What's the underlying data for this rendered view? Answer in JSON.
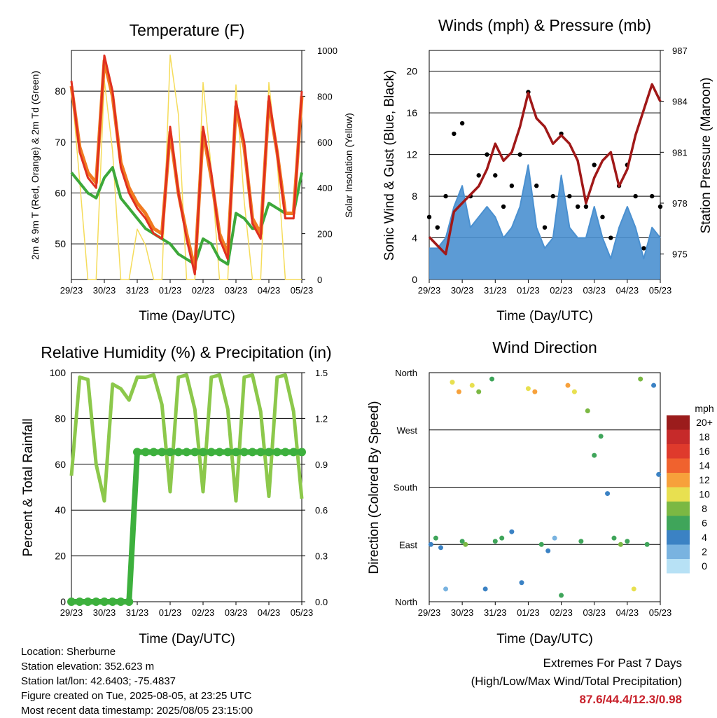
{
  "x_ticks": [
    "29/23",
    "30/23",
    "31/23",
    "01/23",
    "02/23",
    "03/23",
    "04/23",
    "05/23"
  ],
  "x_label": "Time (Day/UTC)",
  "panels": {
    "temperature": {
      "title": "Temperature (F)",
      "ylabel_left": "2m & 9m T (Red, Orange) & 2m Td (Green)",
      "ylabel_right": "Solar Insolation (Yellow)",
      "left_ticks": [
        "50",
        "60",
        "70",
        "80"
      ],
      "right_ticks": [
        "0",
        "200",
        "400",
        "600",
        "800",
        "1000"
      ]
    },
    "winds": {
      "title": "Winds (mph) & Pressure (mb)",
      "ylabel_left": "Sonic Wind & Gust (Blue, Black)",
      "ylabel_right": "Station Pressure (Maroon)",
      "left_ticks": [
        "0",
        "4",
        "8",
        "12",
        "16",
        "20"
      ],
      "right_ticks": [
        "975",
        "978",
        "981",
        "984",
        "987"
      ]
    },
    "humidity": {
      "title": "Relative Humidity (%) & Precipitation (in)",
      "ylabel_left": "Percent & Total Rainfall",
      "left_ticks": [
        "0",
        "20",
        "40",
        "60",
        "80",
        "100"
      ],
      "right_ticks": [
        "0.0",
        "0.3",
        "0.6",
        "0.9",
        "1.2",
        "1.5"
      ]
    },
    "direction": {
      "title": "Wind Direction",
      "ylabel_left": "Direction (Colored By Speed)",
      "left_ticks": [
        "North",
        "East",
        "South",
        "West",
        "North"
      ],
      "legend_unit": "mph",
      "legend_labels": [
        "20+",
        "18",
        "16",
        "14",
        "12",
        "10",
        "8",
        "6",
        "4",
        "2",
        "0"
      ],
      "legend_colors": [
        "#9b1c1c",
        "#c62a2a",
        "#df3a2c",
        "#f0622e",
        "#f7a13b",
        "#e8e050",
        "#7bb843",
        "#3fa55a",
        "#3b82c4",
        "#79b3e0",
        "#b7e1f5"
      ]
    }
  },
  "colors": {
    "t2m": "#e03020",
    "t9m": "#f07a20",
    "dewpoint": "#3da83a",
    "solar": "#f5dc5a",
    "gust": "#000000",
    "wind": "#4a90d0",
    "pressure": "#a01818",
    "rh": "#8cc84b",
    "precip": "#3db03d"
  },
  "chart_data": [
    {
      "type": "line",
      "title": "Temperature (F)",
      "xlabel": "Time (Day/UTC)",
      "ylabel": "2m & 9m T (Red, Orange) & 2m Td (Green)",
      "ylabel_right": "Solar Insolation (Yellow)",
      "x": [
        0,
        0.25,
        0.5,
        0.75,
        1,
        1.25,
        1.5,
        1.75,
        2,
        2.25,
        2.5,
        2.75,
        3,
        3.25,
        3.5,
        3.75,
        4,
        4.25,
        4.5,
        4.75,
        5,
        5.25,
        5.5,
        5.75,
        6,
        6.25,
        6.5,
        6.75,
        7
      ],
      "x_unit": "days since 29/23",
      "ylim": [
        43,
        88
      ],
      "ylim_right": [
        0,
        1000
      ],
      "series": [
        {
          "name": "2m T",
          "axis": "left",
          "values": [
            82,
            68,
            63,
            61,
            87,
            80,
            65,
            60,
            57,
            55,
            52,
            51,
            73,
            60,
            51,
            44,
            73,
            64,
            51,
            47,
            78,
            70,
            54,
            51,
            79,
            68,
            55,
            55,
            80
          ]
        },
        {
          "name": "9m T",
          "axis": "left",
          "values": [
            81,
            69,
            64,
            62,
            86,
            79,
            66,
            61,
            58,
            56,
            53,
            52,
            72,
            60,
            52,
            45,
            72,
            63,
            52,
            48,
            77,
            69,
            55,
            52,
            78,
            68,
            56,
            56,
            79
          ]
        },
        {
          "name": "2m Td",
          "axis": "left",
          "values": [
            64,
            62,
            60,
            59,
            63,
            65,
            59,
            57,
            55,
            53,
            52,
            51,
            50,
            48,
            47,
            46,
            51,
            50,
            47,
            46,
            56,
            55,
            53,
            53,
            58,
            57,
            56,
            56,
            64
          ]
        },
        {
          "name": "Solar",
          "axis": "right",
          "values": [
            850,
            430,
            0,
            0,
            870,
            560,
            0,
            0,
            220,
            150,
            0,
            0,
            980,
            720,
            0,
            0,
            860,
            480,
            0,
            0,
            850,
            340,
            0,
            0,
            860,
            520,
            0,
            0,
            0
          ]
        }
      ]
    },
    {
      "type": "line",
      "title": "Winds (mph) & Pressure (mb)",
      "xlabel": "Time (Day/UTC)",
      "ylabel": "Sonic Wind & Gust (Blue, Black)",
      "ylabel_right": "Station Pressure (Maroon)",
      "x": [
        0,
        0.25,
        0.5,
        0.75,
        1,
        1.25,
        1.5,
        1.75,
        2,
        2.25,
        2.5,
        2.75,
        3,
        3.25,
        3.5,
        3.75,
        4,
        4.25,
        4.5,
        4.75,
        5,
        5.25,
        5.5,
        5.75,
        6,
        6.25,
        6.5,
        6.75,
        7
      ],
      "x_unit": "days since 29/23",
      "ylim": [
        0,
        22
      ],
      "ylim_right": [
        973.5,
        987
      ],
      "series": [
        {
          "name": "Gust",
          "axis": "left",
          "values": [
            6,
            5,
            8,
            14,
            15,
            8,
            10,
            12,
            10,
            7,
            9,
            12,
            18,
            9,
            5,
            8,
            14,
            8,
            7,
            7,
            11,
            6,
            4,
            9,
            11,
            8,
            3,
            8,
            7
          ]
        },
        {
          "name": "Wind",
          "axis": "left",
          "values": [
            3,
            3,
            4,
            7,
            9,
            5,
            6,
            7,
            6,
            4,
            5,
            7,
            11,
            5,
            3,
            4,
            10,
            5,
            4,
            4,
            7,
            4,
            2,
            5,
            7,
            5,
            2,
            5,
            4
          ]
        },
        {
          "name": "Pressure",
          "axis": "right",
          "values": [
            976,
            975.5,
            975,
            977.5,
            978,
            978.5,
            979,
            980,
            981.5,
            980.5,
            981,
            982.5,
            984.5,
            983,
            982.5,
            981.5,
            982,
            981.5,
            980.5,
            978,
            979.5,
            980.5,
            981,
            979,
            980,
            982,
            983.5,
            985,
            984
          ]
        }
      ]
    },
    {
      "type": "line",
      "title": "Relative Humidity (%) & Precipitation (in)",
      "xlabel": "Time (Day/UTC)",
      "ylabel": "Percent & Total Rainfall",
      "x": [
        0,
        0.25,
        0.5,
        0.75,
        1,
        1.25,
        1.5,
        1.75,
        2,
        2.25,
        2.5,
        2.75,
        3,
        3.25,
        3.5,
        3.75,
        4,
        4.25,
        4.5,
        4.75,
        5,
        5.25,
        5.5,
        5.75,
        6,
        6.25,
        6.5,
        6.75,
        7
      ],
      "x_unit": "days since 29/23",
      "ylim": [
        0,
        100
      ],
      "ylim_right": [
        0,
        1.5
      ],
      "series": [
        {
          "name": "RH",
          "axis": "left",
          "values": [
            55,
            98,
            97,
            60,
            44,
            95,
            93,
            88,
            98,
            98,
            99,
            86,
            48,
            98,
            99,
            84,
            48,
            98,
            99,
            84,
            44,
            98,
            99,
            83,
            46,
            98,
            99,
            83,
            45
          ]
        },
        {
          "name": "Precip",
          "axis": "right",
          "values": [
            0,
            0,
            0,
            0,
            0,
            0,
            0,
            0,
            0.98,
            0.98,
            0.98,
            0.98,
            0.98,
            0.98,
            0.98,
            0.98,
            0.98,
            0.98,
            0.98,
            0.98,
            0.98,
            0.98,
            0.98,
            0.98,
            0.98,
            0.98,
            0.98,
            0.98,
            0.98
          ]
        }
      ]
    },
    {
      "type": "scatter",
      "title": "Wind Direction",
      "xlabel": "Time (Day/UTC)",
      "ylabel": "Direction (Colored By Speed)",
      "x": [
        0.05,
        0.2,
        0.35,
        0.5,
        0.7,
        0.9,
        1.0,
        1.1,
        1.3,
        1.5,
        1.7,
        1.9,
        2.0,
        2.2,
        2.5,
        2.8,
        3.0,
        3.2,
        3.4,
        3.6,
        3.8,
        4.0,
        4.2,
        4.4,
        4.6,
        4.8,
        5.0,
        5.2,
        5.4,
        5.6,
        5.8,
        6.0,
        6.2,
        6.4,
        6.6,
        6.8,
        6.95
      ],
      "x_unit": "days since 29/23",
      "y": [
        90,
        100,
        85,
        20,
        345,
        330,
        95,
        90,
        340,
        330,
        20,
        350,
        95,
        100,
        110,
        30,
        335,
        330,
        90,
        80,
        100,
        10,
        340,
        330,
        95,
        300,
        230,
        260,
        170,
        100,
        90,
        95,
        20,
        350,
        90,
        340,
        200
      ],
      "speed_mph": [
        4,
        6,
        3,
        2,
        9,
        12,
        5,
        7,
        10,
        8,
        4,
        6,
        6,
        5,
        3,
        4,
        10,
        11,
        5,
        3,
        2,
        6,
        11,
        9,
        6,
        7,
        5,
        6,
        3,
        5,
        8,
        6,
        9,
        7,
        5,
        4,
        3
      ],
      "ylim": [
        0,
        360
      ],
      "ytick_values": [
        0,
        90,
        180,
        270,
        360
      ]
    }
  ],
  "footer": {
    "location": "Location: Sherburne",
    "elevation": "Station elevation: 352.623 m",
    "latlon": "Station lat/lon: 42.6403; -75.4837",
    "created": "Figure created on Tue, 2025-08-05, at 23:25 UTC",
    "recent": "Most recent data timestamp: 2025/08/05 23:15:00"
  },
  "extremes": {
    "title": "Extremes For Past 7 Days",
    "subtitle": "(High/Low/Max Wind/Total Precipitation)",
    "value": "87.6/44.4/12.3/0.98"
  }
}
